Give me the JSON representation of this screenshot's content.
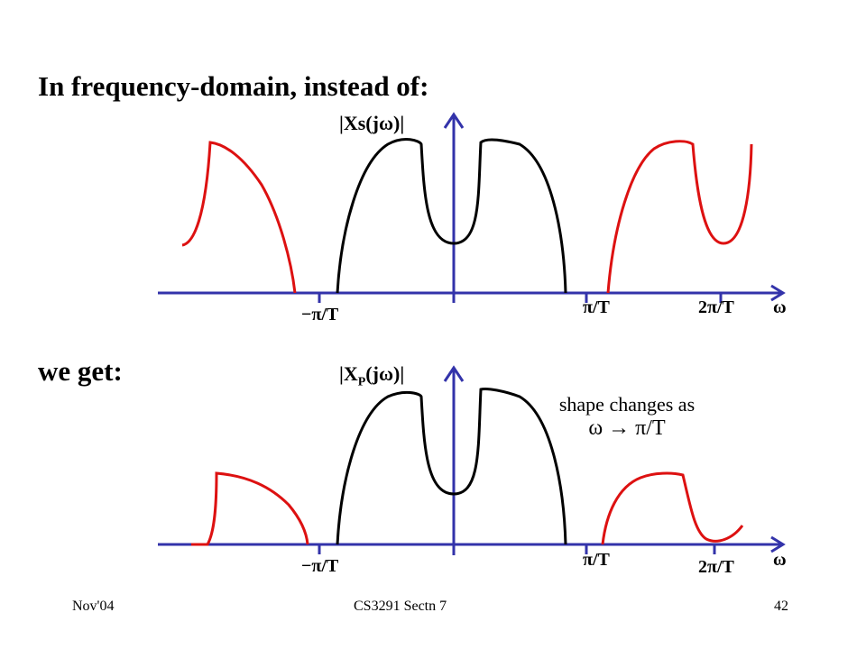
{
  "slide": {
    "heading": "In frequency-domain, instead of:",
    "we_get": "we get:",
    "note_line1": "shape changes as",
    "note_line2": "ω → π/T"
  },
  "top_plot": {
    "ylabel": "|Xs(jω)|",
    "x_ticks": [
      "−π/T",
      "π/T",
      "2π/T"
    ],
    "x_axis_symbol": "ω"
  },
  "bottom_plot": {
    "ylabel_main": "|X",
    "ylabel_sub": "P",
    "ylabel_end": "(jω)|",
    "x_ticks": [
      "−π/T",
      "π/T",
      "2π/T"
    ],
    "x_axis_symbol": "ω"
  },
  "footer": {
    "left": "Nov'04",
    "center": "CS3291 Sectn 7",
    "right": "42"
  },
  "colors": {
    "axis": "#3333aa",
    "original_spectrum": "#000000",
    "replica_spectrum": "#dd1111"
  }
}
